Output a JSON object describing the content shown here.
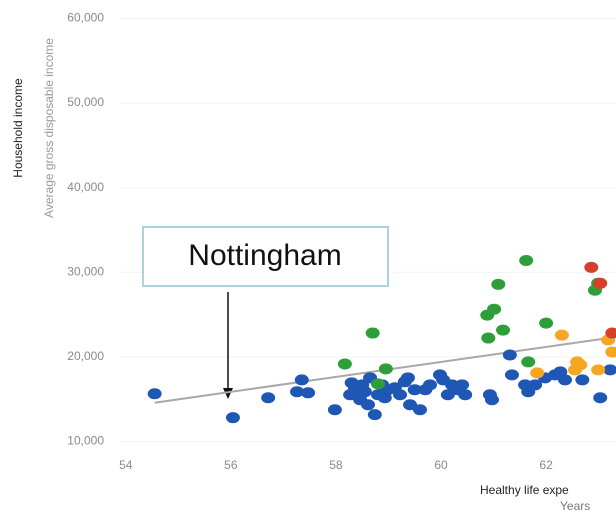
{
  "chart_data": {
    "type": "scatter",
    "y_label": "Household income",
    "y_sublabel": "Average gross disposable income",
    "x_label": "Healthy life expe",
    "x_sublabel": "Years",
    "annotation": "Nottingham",
    "xlim": [
      53.7,
      63.33
    ],
    "ylim": [
      9000,
      61000
    ],
    "xticks": [
      54,
      56,
      58,
      60,
      62
    ],
    "yticks": [
      {
        "value": 10000,
        "label": "10,000"
      },
      {
        "value": 20000,
        "label": "20,000"
      },
      {
        "value": 30000,
        "label": "30,000"
      },
      {
        "value": 40000,
        "label": "40,000"
      },
      {
        "value": 50000,
        "label": "50,000"
      },
      {
        "value": 60000,
        "label": "60,000"
      }
    ],
    "grid": true,
    "trendline": {
      "color": "#a8a8a8",
      "x": [
        54.55,
        63.33
      ],
      "y": [
        14590,
        22350
      ]
    },
    "series": [
      {
        "color": "#1f57b5",
        "x": [
          54.55,
          56.04,
          56.71,
          57.26,
          57.35,
          57.47,
          57.98,
          58.27,
          58.3,
          58.36,
          58.46,
          58.5,
          58.55,
          58.61,
          58.65,
          58.74,
          58.8,
          58.88,
          58.93,
          58.99,
          59.12,
          59.22,
          59.31,
          59.37,
          59.41,
          59.5,
          59.6,
          59.7,
          59.79,
          59.98,
          60.04,
          60.13,
          60.21,
          60.32,
          60.4,
          60.46,
          60.93,
          60.97,
          61.31,
          61.35,
          61.6,
          61.66,
          61.79,
          61.98,
          62.17,
          62.27,
          62.36,
          62.69,
          63.03,
          63.22
        ],
        "values": [
          15650,
          12820,
          15170,
          15880,
          17290,
          15760,
          13760,
          15530,
          16940,
          16120,
          14940,
          16700,
          15880,
          14350,
          17530,
          13180,
          15530,
          16700,
          15170,
          16120,
          16350,
          15530,
          17060,
          17530,
          14350,
          16120,
          13760,
          16120,
          16700,
          17880,
          17290,
          15530,
          16700,
          16120,
          16700,
          15530,
          15530,
          14940,
          20230,
          17880,
          16700,
          15880,
          16700,
          17530,
          17880,
          18230,
          17290,
          17290,
          15170,
          18470
        ]
      },
      {
        "color": "#2e9e3a",
        "x": [
          58.17,
          58.7,
          58.95,
          58.8,
          60.88,
          61.01,
          60.9,
          61.09,
          61.18,
          61.62,
          61.66,
          62.0,
          62.93,
          62.99
        ],
        "values": [
          19170,
          22820,
          18590,
          16820,
          24940,
          25640,
          22230,
          28580,
          23170,
          31400,
          19410,
          24000,
          27880,
          28700
        ]
      },
      {
        "color": "#f5a623",
        "x": [
          61.83,
          62.3,
          62.59,
          62.55,
          62.65,
          62.99,
          63.26,
          63.18
        ],
        "values": [
          18110,
          22580,
          19410,
          18470,
          19060,
          18470,
          20580,
          22000
        ]
      },
      {
        "color": "#d6402b",
        "x": [
          62.86,
          63.03,
          63.26
        ],
        "values": [
          30580,
          28700,
          22820
        ]
      }
    ]
  }
}
